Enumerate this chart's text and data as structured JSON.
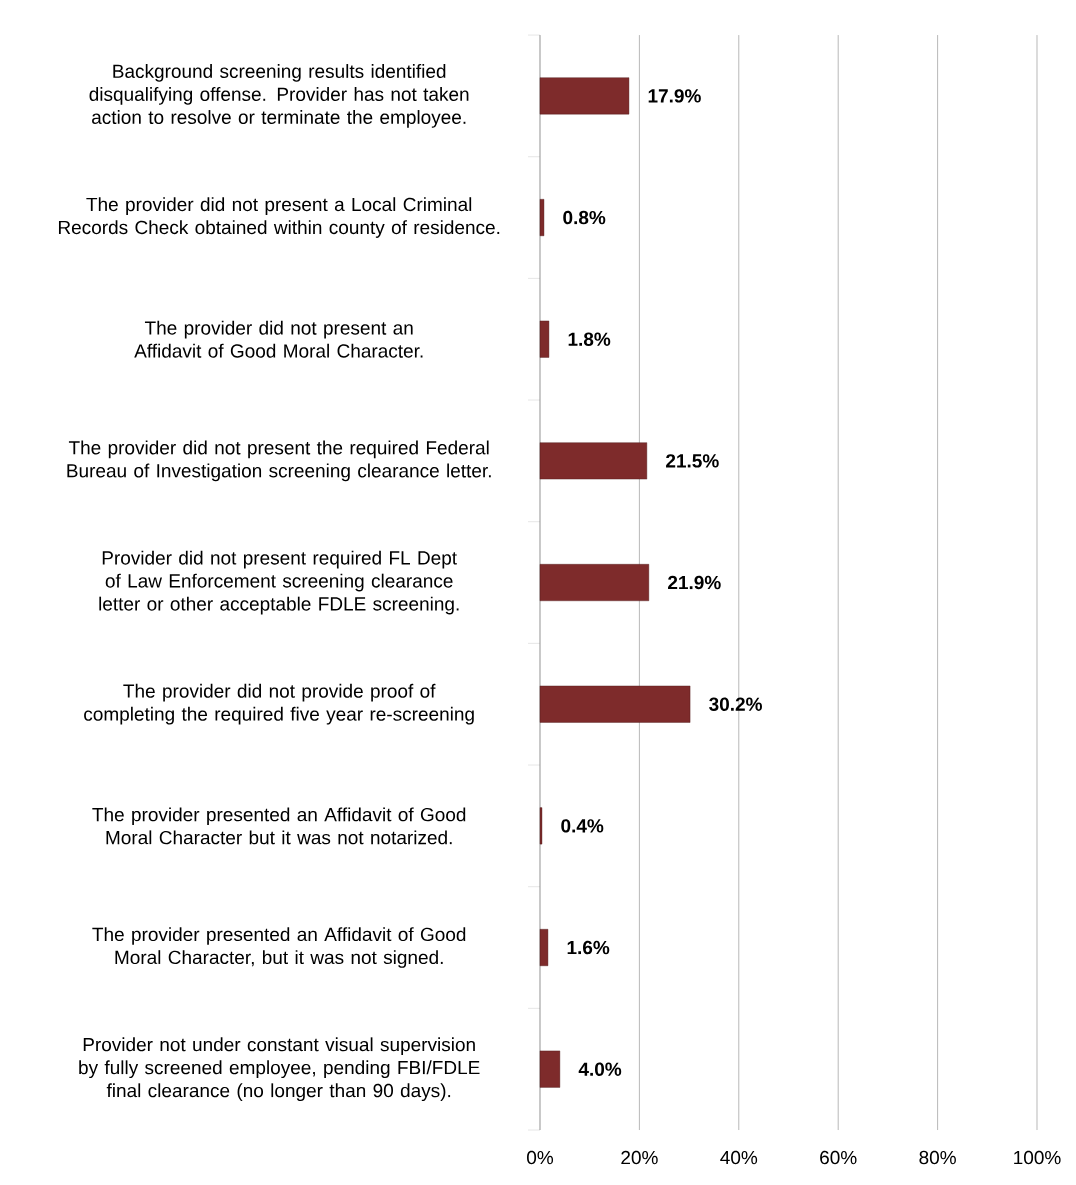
{
  "chart_data": {
    "type": "bar",
    "orientation": "horizontal",
    "categories": [
      "Background screening results identified disqualifying offense. Provider has not taken action to resolve or terminate the employee.",
      "The provider did not present a Local Criminal Records Check obtained within county of residence.",
      "The provider did not present an Affidavit of Good Moral Character.",
      "The provider did not present the required Federal Bureau of Investigation screening clearance letter.",
      "Provider did not present required FL Dept of Law Enforcement screening clearance letter or other acceptable FDLE screening.",
      "The provider did not provide proof of completing the required five year re-screening",
      "The provider presented an Affidavit of Good Moral Character but it was not notarized.",
      "The provider presented an Affidavit of Good Moral Character, but it was not signed.",
      "Provider not under constant visual supervision by fully screened employee, pending FBI/FDLE final clearance (no longer than 90 days)."
    ],
    "values": [
      17.9,
      0.8,
      1.8,
      21.5,
      21.9,
      30.2,
      0.4,
      1.6,
      4.0
    ],
    "value_labels": [
      "17.9%",
      "0.8%",
      "1.8%",
      "21.5%",
      "21.9%",
      "30.2%",
      "0.4%",
      "1.6%",
      "4.0%"
    ],
    "color": "#7e2b2b",
    "xlim": [
      0,
      100
    ],
    "xticks": [
      {
        "value": 0,
        "label": "0%"
      },
      {
        "value": 20,
        "label": "20%"
      },
      {
        "value": 40,
        "label": "40%"
      },
      {
        "value": 60,
        "label": "60%"
      },
      {
        "value": 80,
        "label": "80%"
      },
      {
        "value": 100,
        "label": "100%"
      }
    ],
    "grid": "x"
  }
}
